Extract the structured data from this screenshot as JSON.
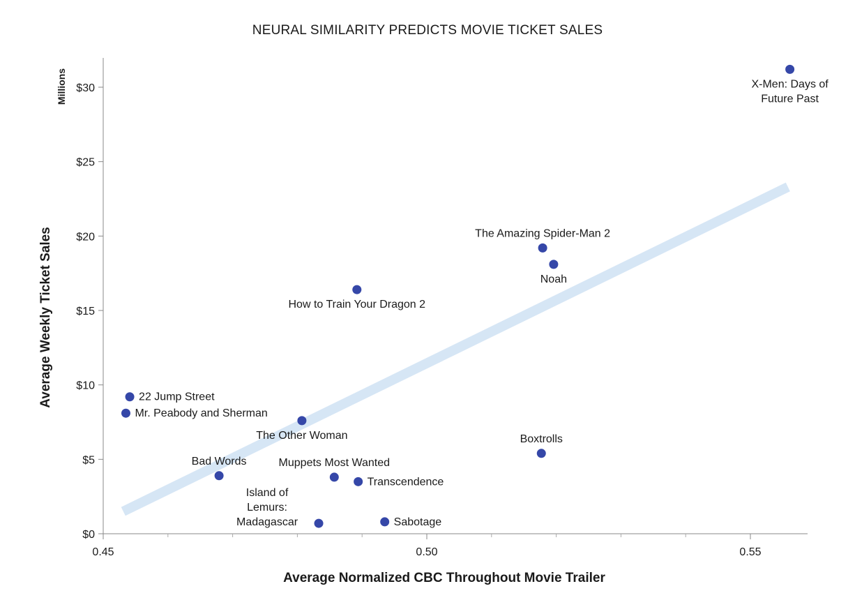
{
  "chart_data": {
    "type": "scatter",
    "title": "NEURAL SIMILARITY PREDICTS MOVIE TICKET SALES",
    "xlabel": "Average Normalized CBC Throughout Movie Trailer",
    "ylabel": "Average Weekly Ticket Sales",
    "y_unit_label": "Millions",
    "xlim": [
      0.45,
      0.56
    ],
    "ylim": [
      0,
      32
    ],
    "x_ticks": [
      {
        "value": 0.45,
        "label": "0.45"
      },
      {
        "value": 0.5,
        "label": "0.50"
      },
      {
        "value": 0.55,
        "label": "0.55"
      }
    ],
    "x_minor_ticks": [
      0.46,
      0.47,
      0.48,
      0.49,
      0.51,
      0.52,
      0.53,
      0.54
    ],
    "y_ticks": [
      {
        "value": 0,
        "label": "$0"
      },
      {
        "value": 5,
        "label": "$5"
      },
      {
        "value": 10,
        "label": "$10"
      },
      {
        "value": 15,
        "label": "$15"
      },
      {
        "value": 20,
        "label": "$20"
      },
      {
        "value": 25,
        "label": "$25"
      },
      {
        "value": 30,
        "label": "$30"
      }
    ],
    "grid": false,
    "colors": {
      "point": "#3547a8",
      "trendline": "#d6e6f5",
      "axis": "#888888"
    },
    "points": [
      {
        "name": "X-Men: Days of Future Past",
        "label_lines": [
          "X-Men: Days of",
          "Future Past"
        ],
        "x": 0.5561,
        "y": 31.2,
        "label_pos": "below"
      },
      {
        "name": "The Amazing Spider-Man 2",
        "label_lines": [
          "The Amazing Spider-Man 2"
        ],
        "x": 0.5179,
        "y": 19.2,
        "label_pos": "above"
      },
      {
        "name": "Noah",
        "label_lines": [
          "Noah"
        ],
        "x": 0.5196,
        "y": 18.1,
        "label_pos": "below"
      },
      {
        "name": "How to Train Your Dragon 2",
        "label_lines": [
          "How to Train Your Dragon 2"
        ],
        "x": 0.4892,
        "y": 16.4,
        "label_pos": "below"
      },
      {
        "name": "22 Jump Street",
        "label_lines": [
          "22 Jump Street"
        ],
        "x": 0.4541,
        "y": 9.2,
        "label_pos": "right"
      },
      {
        "name": "Mr. Peabody and Sherman",
        "label_lines": [
          "Mr. Peabody and Sherman"
        ],
        "x": 0.4535,
        "y": 8.1,
        "label_pos": "right"
      },
      {
        "name": "The Other Woman",
        "label_lines": [
          "The Other Woman"
        ],
        "x": 0.4807,
        "y": 7.6,
        "label_pos": "below"
      },
      {
        "name": "Boxtrolls",
        "label_lines": [
          "Boxtrolls"
        ],
        "x": 0.5177,
        "y": 5.4,
        "label_pos": "above"
      },
      {
        "name": "Bad Words",
        "label_lines": [
          "Bad Words"
        ],
        "x": 0.4679,
        "y": 3.9,
        "label_pos": "above"
      },
      {
        "name": "Muppets Most Wanted",
        "label_lines": [
          "Muppets Most Wanted"
        ],
        "x": 0.4857,
        "y": 3.8,
        "label_pos": "above"
      },
      {
        "name": "Transcendence",
        "label_lines": [
          "Transcendence"
        ],
        "x": 0.4894,
        "y": 3.5,
        "label_pos": "right"
      },
      {
        "name": "Island of Lemurs: Madagascar",
        "label_lines": [
          "Island of",
          "Lemurs:",
          "Madagascar"
        ],
        "x": 0.4833,
        "y": 0.7,
        "label_pos": "left-stack"
      },
      {
        "name": "Sabotage",
        "label_lines": [
          "Sabotage"
        ],
        "x": 0.4935,
        "y": 0.8,
        "label_pos": "right"
      }
    ],
    "trendline": {
      "x": [
        0.4531,
        0.5558
      ],
      "y": [
        1.5,
        23.3
      ]
    }
  }
}
